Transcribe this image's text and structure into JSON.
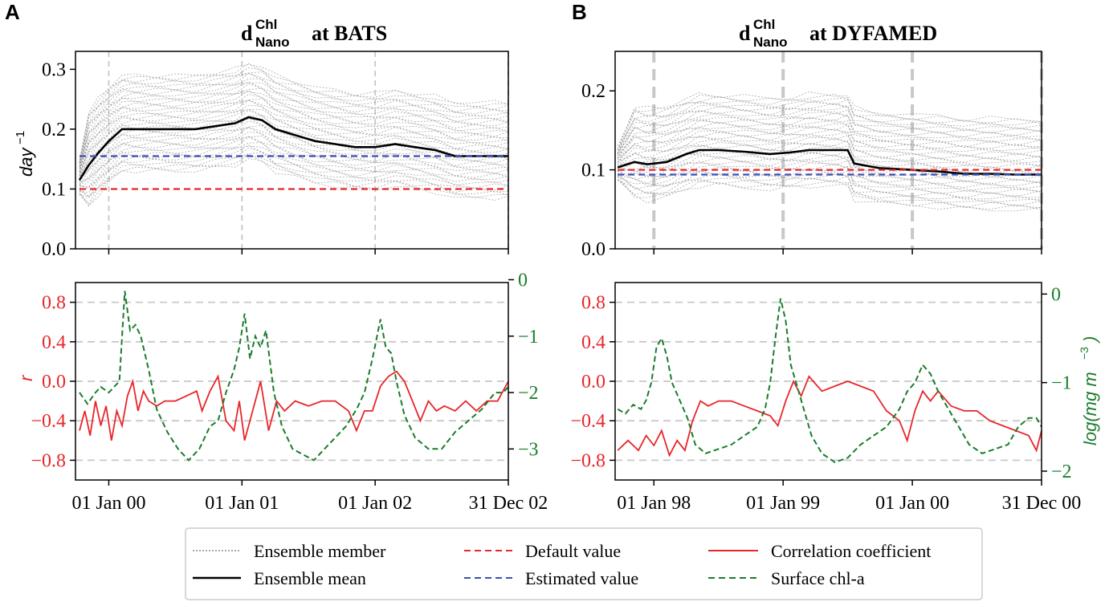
{
  "panels": [
    {
      "letter": "A",
      "title_main": "d",
      "title_sup": "Chl",
      "title_sub": "Nano",
      "title_tail": "at BATS"
    },
    {
      "letter": "B",
      "title_main": "d",
      "title_sup": "Chl",
      "title_sub": "Nano",
      "title_tail": "at DYFAMED"
    }
  ],
  "axis_labels": {
    "top_ylabel": "day",
    "top_ylabel_exp": "−1",
    "bottom_left_ylabel": "r",
    "bottom_right_ylabel": "log(mg m",
    "bottom_right_ylabel_exp": "−3",
    "bottom_right_ylabel_close": ")"
  },
  "colors": {
    "ensemble_member": "#8c8c8c",
    "ensemble_mean": "#000000",
    "default_value": "#e8262a",
    "estimated_value": "#3a4fb5",
    "correlation": "#e8262a",
    "chl": "#1a7d2b",
    "grid": "#c8c8c8"
  },
  "legend": {
    "items": [
      {
        "label": "Ensemble member",
        "style": "member"
      },
      {
        "label": "Ensemble mean",
        "style": "mean"
      },
      {
        "label": "Default value",
        "style": "default"
      },
      {
        "label": "Estimated value",
        "style": "estimated"
      },
      {
        "label": "Correlation coefficient",
        "style": "corr"
      },
      {
        "label": "Surface chl-a",
        "style": "chl"
      }
    ]
  },
  "chart_data": [
    {
      "type": "line",
      "panel": "A-top",
      "title": "d Chl Nano at BATS",
      "ylabel": "day−1",
      "xlim": [
        -0.25,
        3
      ],
      "ylim": [
        0,
        0.33
      ],
      "yticks": [
        0.0,
        0.1,
        0.2,
        0.3
      ],
      "ytick_labels": [
        "0.0",
        "0.1",
        "0.2",
        "0.3"
      ],
      "xticks": [
        0,
        1,
        2,
        3
      ],
      "vlines": [
        0,
        1,
        2,
        3
      ],
      "series": [
        {
          "name": "Ensemble mean",
          "x": [
            -0.22,
            -0.15,
            -0.08,
            0,
            0.1,
            0.2,
            0.35,
            0.5,
            0.65,
            0.8,
            0.95,
            1.05,
            1.15,
            1.25,
            1.4,
            1.55,
            1.7,
            1.85,
            2.0,
            2.15,
            2.3,
            2.45,
            2.6,
            2.75,
            2.9,
            3.0
          ],
          "y": [
            0.115,
            0.14,
            0.16,
            0.18,
            0.2,
            0.2,
            0.2,
            0.2,
            0.2,
            0.205,
            0.21,
            0.22,
            0.215,
            0.2,
            0.19,
            0.18,
            0.175,
            0.17,
            0.17,
            0.175,
            0.17,
            0.165,
            0.155,
            0.155,
            0.155,
            0.155
          ]
        },
        {
          "name": "Estimated value",
          "x": [
            -0.22,
            3.0
          ],
          "y": [
            0.155,
            0.155
          ]
        },
        {
          "name": "Default value",
          "x": [
            -0.22,
            3.0
          ],
          "y": [
            0.1,
            0.1
          ]
        }
      ],
      "ensemble_spread": {
        "members": 40,
        "offset_range": [
          -0.07,
          0.09
        ]
      }
    },
    {
      "type": "line",
      "panel": "B-top",
      "title": "d Chl Nano at DYFAMED",
      "ylabel": "day−1",
      "xlim": [
        -0.3,
        3
      ],
      "ylim": [
        0,
        0.25
      ],
      "yticks": [
        0.0,
        0.1,
        0.2
      ],
      "ytick_labels": [
        "0.0",
        "0.1",
        "0.2"
      ],
      "xticks": [
        0,
        1,
        2,
        3
      ],
      "vlines": [
        0,
        1,
        2,
        3
      ],
      "series": [
        {
          "name": "Ensemble mean",
          "x": [
            -0.28,
            -0.15,
            -0.05,
            0.1,
            0.25,
            0.35,
            0.5,
            0.7,
            0.9,
            1.05,
            1.2,
            1.4,
            1.5,
            1.55,
            1.75,
            2.0,
            2.2,
            2.4,
            2.6,
            2.8,
            3.0
          ],
          "y": [
            0.103,
            0.11,
            0.107,
            0.11,
            0.12,
            0.125,
            0.125,
            0.123,
            0.12,
            0.122,
            0.125,
            0.125,
            0.125,
            0.108,
            0.102,
            0.1,
            0.098,
            0.095,
            0.095,
            0.094,
            0.094
          ]
        },
        {
          "name": "Default value",
          "x": [
            -0.28,
            3.0
          ],
          "y": [
            0.1,
            0.1
          ]
        },
        {
          "name": "Estimated value",
          "x": [
            -0.28,
            3.0
          ],
          "y": [
            0.094,
            0.094
          ]
        }
      ],
      "ensemble_spread": {
        "members": 40,
        "offset_range": [
          -0.045,
          0.07
        ]
      }
    },
    {
      "type": "line",
      "panel": "A-bottom",
      "xlim": [
        -0.25,
        3
      ],
      "ylim": [
        -1.0,
        1.0
      ],
      "yticks": [
        -0.8,
        -0.4,
        0.0,
        0.4,
        0.8
      ],
      "ytick_labels": [
        "−0.8",
        "−0.4",
        "0.0",
        "0.4",
        "0.8"
      ],
      "y2lim": [
        -3.55,
        -0.05
      ],
      "y2ticks": [
        -3,
        -2,
        -1,
        0
      ],
      "y2tick_labels": [
        "−3",
        "−2",
        "−1",
        "0"
      ],
      "ylabel": "r",
      "xticks": [
        0,
        1,
        2,
        3
      ],
      "xtick_labels": [
        "01 Jan 00",
        "01 Jan 01",
        "01 Jan 02",
        "31 Dec 02"
      ],
      "hgrid": [
        -0.8,
        -0.4,
        0.0,
        0.4,
        0.8
      ],
      "series": [
        {
          "name": "Correlation coefficient",
          "axis": "left",
          "x": [
            -0.22,
            -0.18,
            -0.14,
            -0.1,
            -0.06,
            -0.02,
            0.02,
            0.06,
            0.1,
            0.14,
            0.18,
            0.22,
            0.26,
            0.3,
            0.36,
            0.42,
            0.5,
            0.58,
            0.66,
            0.7,
            0.76,
            0.82,
            0.88,
            0.94,
            0.98,
            1.02,
            1.08,
            1.14,
            1.2,
            1.26,
            1.32,
            1.4,
            1.5,
            1.6,
            1.7,
            1.8,
            1.86,
            1.92,
            1.98,
            2.04,
            2.1,
            2.16,
            2.22,
            2.28,
            2.34,
            2.4,
            2.46,
            2.52,
            2.6,
            2.68,
            2.76,
            2.84,
            2.92,
            3.0
          ],
          "y": [
            -0.5,
            -0.3,
            -0.55,
            -0.2,
            -0.45,
            -0.25,
            -0.6,
            -0.3,
            -0.45,
            -0.15,
            0.0,
            -0.3,
            -0.1,
            -0.2,
            -0.25,
            -0.2,
            -0.2,
            -0.15,
            -0.1,
            -0.3,
            -0.1,
            0.05,
            -0.4,
            -0.5,
            -0.2,
            -0.6,
            -0.3,
            0.0,
            -0.5,
            -0.2,
            -0.3,
            -0.2,
            -0.25,
            -0.2,
            -0.2,
            -0.3,
            -0.5,
            -0.3,
            -0.3,
            -0.05,
            0.05,
            0.1,
            0.0,
            -0.2,
            -0.4,
            -0.2,
            -0.3,
            -0.25,
            -0.3,
            -0.2,
            -0.3,
            -0.2,
            -0.2,
            0.0
          ]
        },
        {
          "name": "Surface chl-a",
          "axis": "right",
          "x": [
            -0.22,
            -0.16,
            -0.1,
            -0.06,
            0.0,
            0.04,
            0.08,
            0.12,
            0.16,
            0.2,
            0.24,
            0.3,
            0.36,
            0.44,
            0.52,
            0.6,
            0.68,
            0.76,
            0.82,
            0.88,
            0.94,
            0.98,
            1.02,
            1.06,
            1.1,
            1.14,
            1.18,
            1.24,
            1.3,
            1.38,
            1.46,
            1.54,
            1.62,
            1.7,
            1.78,
            1.86,
            1.92,
            1.98,
            2.04,
            2.08,
            2.12,
            2.16,
            2.22,
            2.3,
            2.4,
            2.5,
            2.6,
            2.7,
            2.8,
            2.9,
            2.96,
            3.0
          ],
          "y": [
            -2.0,
            -2.2,
            -2.0,
            -1.9,
            -2.0,
            -1.9,
            -1.8,
            -0.2,
            -0.9,
            -0.8,
            -1.0,
            -1.6,
            -2.3,
            -2.7,
            -3.0,
            -3.2,
            -3.0,
            -2.6,
            -2.5,
            -2.0,
            -1.6,
            -1.2,
            -0.6,
            -1.4,
            -1.0,
            -1.2,
            -0.9,
            -2.0,
            -2.6,
            -3.0,
            -3.1,
            -3.2,
            -3.0,
            -2.8,
            -2.6,
            -2.3,
            -2.0,
            -1.4,
            -0.7,
            -1.2,
            -1.3,
            -1.8,
            -2.4,
            -2.8,
            -3.0,
            -3.0,
            -2.7,
            -2.5,
            -2.3,
            -2.0,
            -2.0,
            -1.9
          ]
        }
      ]
    },
    {
      "type": "line",
      "panel": "B-bottom",
      "xlim": [
        -0.3,
        3
      ],
      "ylim": [
        -1.0,
        1.0
      ],
      "yticks": [
        -0.8,
        -0.4,
        0.0,
        0.4,
        0.8
      ],
      "ytick_labels": [
        "−0.8",
        "−0.4",
        "0.0",
        "0.4",
        "0.8"
      ],
      "y2lim": [
        -2.1,
        0.13
      ],
      "y2ticks": [
        -2,
        -1,
        0
      ],
      "y2tick_labels": [
        "−2",
        "−1",
        "0"
      ],
      "ylabel": "log(mg m−3)",
      "xticks": [
        0,
        1,
        2,
        3
      ],
      "xtick_labels": [
        "01 Jan 98",
        "01 Jan 99",
        "01 Jan 00",
        "31 Dec 00"
      ],
      "hgrid": [
        -0.8,
        -0.4,
        0.0,
        0.4,
        0.8
      ],
      "series": [
        {
          "name": "Correlation coefficient",
          "axis": "left",
          "x": [
            -0.28,
            -0.2,
            -0.12,
            -0.06,
            0.0,
            0.06,
            0.12,
            0.18,
            0.24,
            0.3,
            0.36,
            0.42,
            0.5,
            0.6,
            0.7,
            0.8,
            0.9,
            0.96,
            1.02,
            1.08,
            1.14,
            1.2,
            1.3,
            1.4,
            1.5,
            1.6,
            1.7,
            1.8,
            1.9,
            1.96,
            2.02,
            2.08,
            2.14,
            2.2,
            2.3,
            2.4,
            2.5,
            2.6,
            2.7,
            2.8,
            2.9,
            2.96,
            3.0
          ],
          "y": [
            -0.7,
            -0.6,
            -0.7,
            -0.55,
            -0.65,
            -0.5,
            -0.75,
            -0.6,
            -0.7,
            -0.4,
            -0.2,
            -0.25,
            -0.2,
            -0.2,
            -0.25,
            -0.3,
            -0.35,
            -0.45,
            -0.2,
            0.0,
            -0.15,
            0.05,
            -0.1,
            -0.05,
            0.0,
            -0.05,
            -0.1,
            -0.3,
            -0.4,
            -0.6,
            -0.3,
            -0.1,
            -0.2,
            -0.1,
            -0.25,
            -0.3,
            -0.3,
            -0.4,
            -0.45,
            -0.5,
            -0.55,
            -0.7,
            -0.5
          ]
        },
        {
          "name": "Surface chl-a",
          "axis": "right",
          "x": [
            -0.28,
            -0.22,
            -0.16,
            -0.1,
            -0.06,
            -0.02,
            0.02,
            0.06,
            0.1,
            0.14,
            0.2,
            0.26,
            0.32,
            0.4,
            0.5,
            0.6,
            0.7,
            0.8,
            0.86,
            0.9,
            0.94,
            0.98,
            1.02,
            1.06,
            1.1,
            1.16,
            1.22,
            1.3,
            1.4,
            1.5,
            1.6,
            1.7,
            1.8,
            1.9,
            1.96,
            2.02,
            2.08,
            2.14,
            2.2,
            2.28,
            2.36,
            2.44,
            2.54,
            2.64,
            2.74,
            2.82,
            2.9,
            2.96,
            3.0
          ],
          "y": [
            -1.3,
            -1.35,
            -1.25,
            -1.3,
            -1.2,
            -1.0,
            -0.6,
            -0.5,
            -0.7,
            -1.0,
            -1.2,
            -1.4,
            -1.7,
            -1.8,
            -1.75,
            -1.7,
            -1.6,
            -1.5,
            -1.3,
            -1.0,
            -0.5,
            -0.05,
            -0.3,
            -0.8,
            -1.0,
            -1.3,
            -1.6,
            -1.8,
            -1.9,
            -1.85,
            -1.7,
            -1.6,
            -1.5,
            -1.3,
            -1.1,
            -1.0,
            -0.8,
            -0.9,
            -1.1,
            -1.3,
            -1.5,
            -1.7,
            -1.8,
            -1.75,
            -1.7,
            -1.5,
            -1.4,
            -1.4,
            -1.5
          ]
        }
      ]
    }
  ]
}
